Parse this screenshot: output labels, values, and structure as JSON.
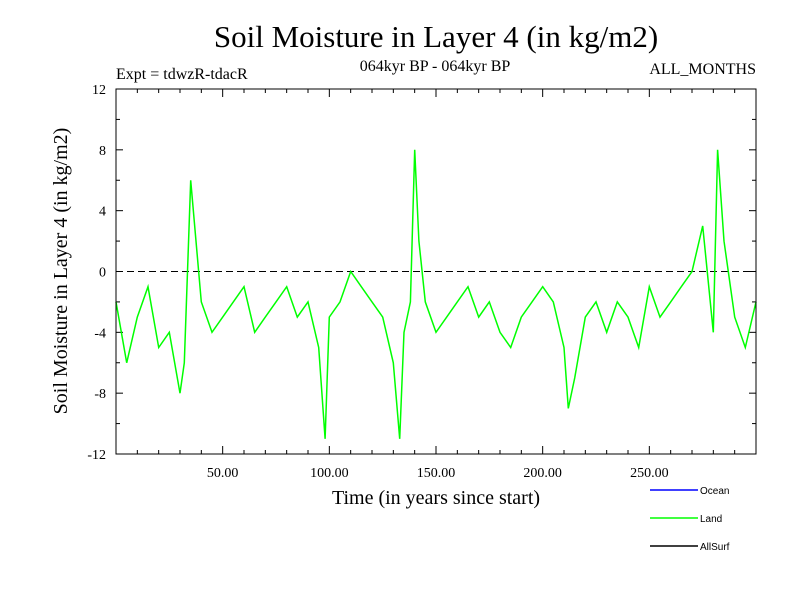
{
  "chart_data": {
    "type": "line",
    "title": "Soil Moisture in Layer 4 (in kg/m2)",
    "subtitle_left": "Expt = tdwzR-tdacR",
    "subtitle_center": "064kyr BP - 064kyr BP",
    "subtitle_right": "ALL_MONTHS",
    "xlabel": "Time (in years since start)",
    "ylabel": "Soil Moisture in Layer 4 (in kg/m2)",
    "xlim": [
      0,
      300
    ],
    "ylim": [
      -12,
      12
    ],
    "x_ticks": [
      50,
      100,
      150,
      200,
      250
    ],
    "x_tick_labels": [
      "50.00",
      "100.00",
      "150.00",
      "200.00",
      "250.00"
    ],
    "y_ticks": [
      -12,
      -8,
      -4,
      0,
      4,
      8,
      12
    ],
    "y_tick_labels": [
      "-12",
      "-8",
      "-4",
      "0",
      "4",
      "8",
      "12"
    ],
    "reference_line": 0,
    "legend_placement": "bottom-right",
    "series": [
      {
        "name": "Ocean",
        "color": "#0000ff",
        "values": []
      },
      {
        "name": "Land",
        "color": "#00ff00",
        "x": [
          0,
          5,
          10,
          15,
          20,
          25,
          30,
          32,
          35,
          40,
          45,
          50,
          55,
          60,
          65,
          70,
          75,
          80,
          85,
          90,
          95,
          98,
          100,
          105,
          110,
          115,
          120,
          125,
          130,
          133,
          135,
          138,
          140,
          142,
          145,
          150,
          155,
          160,
          165,
          170,
          175,
          180,
          185,
          190,
          195,
          200,
          205,
          210,
          212,
          215,
          220,
          225,
          230,
          235,
          240,
          245,
          250,
          255,
          260,
          265,
          270,
          275,
          280,
          282,
          285,
          290,
          295,
          300
        ],
        "values": [
          -2,
          -6,
          -3,
          -1,
          -5,
          -4,
          -8,
          -6,
          6,
          -2,
          -4,
          -3,
          -2,
          -1,
          -4,
          -3,
          -2,
          -1,
          -3,
          -2,
          -5,
          -11,
          -3,
          -2,
          0,
          -1,
          -2,
          -3,
          -6,
          -11,
          -4,
          -2,
          8,
          2,
          -2,
          -4,
          -3,
          -2,
          -1,
          -3,
          -2,
          -4,
          -5,
          -3,
          -2,
          -1,
          -2,
          -5,
          -9,
          -7,
          -3,
          -2,
          -4,
          -2,
          -3,
          -5,
          -1,
          -3,
          -2,
          -1,
          0,
          3,
          -4,
          8,
          2,
          -3,
          -5,
          -2
        ]
      },
      {
        "name": "AllSurf",
        "color": "#000000",
        "values": []
      }
    ]
  }
}
